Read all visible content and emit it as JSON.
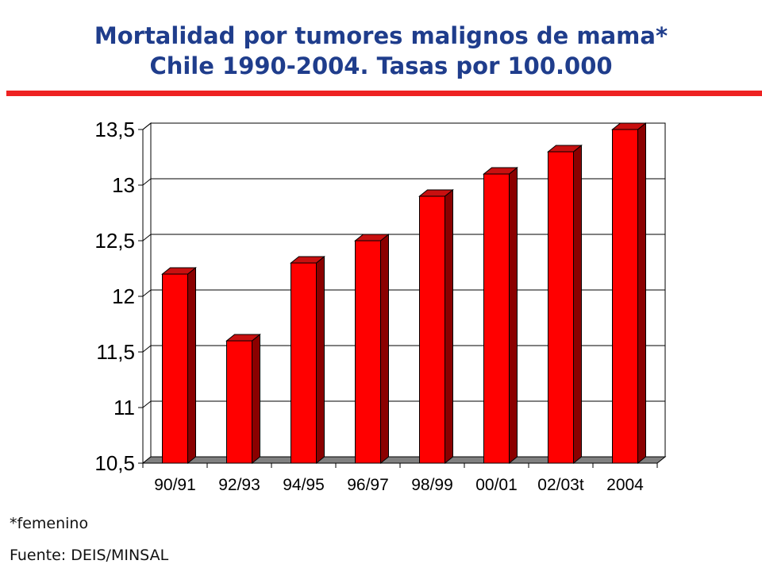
{
  "header": {
    "title_line1": "Mortalidad por tumores malignos de mama*",
    "title_line2": "Chile 1990-2004. Tasas por 100.000"
  },
  "footer": {
    "note": "*femenino",
    "source": "Fuente: DEIS/MINSAL"
  },
  "colors": {
    "title": "#1f3d8c",
    "rule": "#ee2222",
    "bar_front": "#ff0000",
    "bar_side": "#8b0000",
    "bar_top": "#c81010",
    "floor": "#808080"
  },
  "chart_data": {
    "type": "bar",
    "categories": [
      "90/91",
      "92/93",
      "94/95",
      "96/97",
      "98/99",
      "00/01",
      "02/03t",
      "2004"
    ],
    "values": [
      12.2,
      11.6,
      12.3,
      12.5,
      12.9,
      13.1,
      13.3,
      13.5
    ],
    "ylim": [
      10.5,
      13.5
    ],
    "yticks": [
      10.5,
      11,
      11.5,
      12,
      12.5,
      13,
      13.5
    ],
    "ytick_labels": [
      "10,5",
      "11",
      "11,5",
      "12",
      "12,5",
      "13",
      "13,5"
    ],
    "grid": true,
    "style": "3d"
  }
}
